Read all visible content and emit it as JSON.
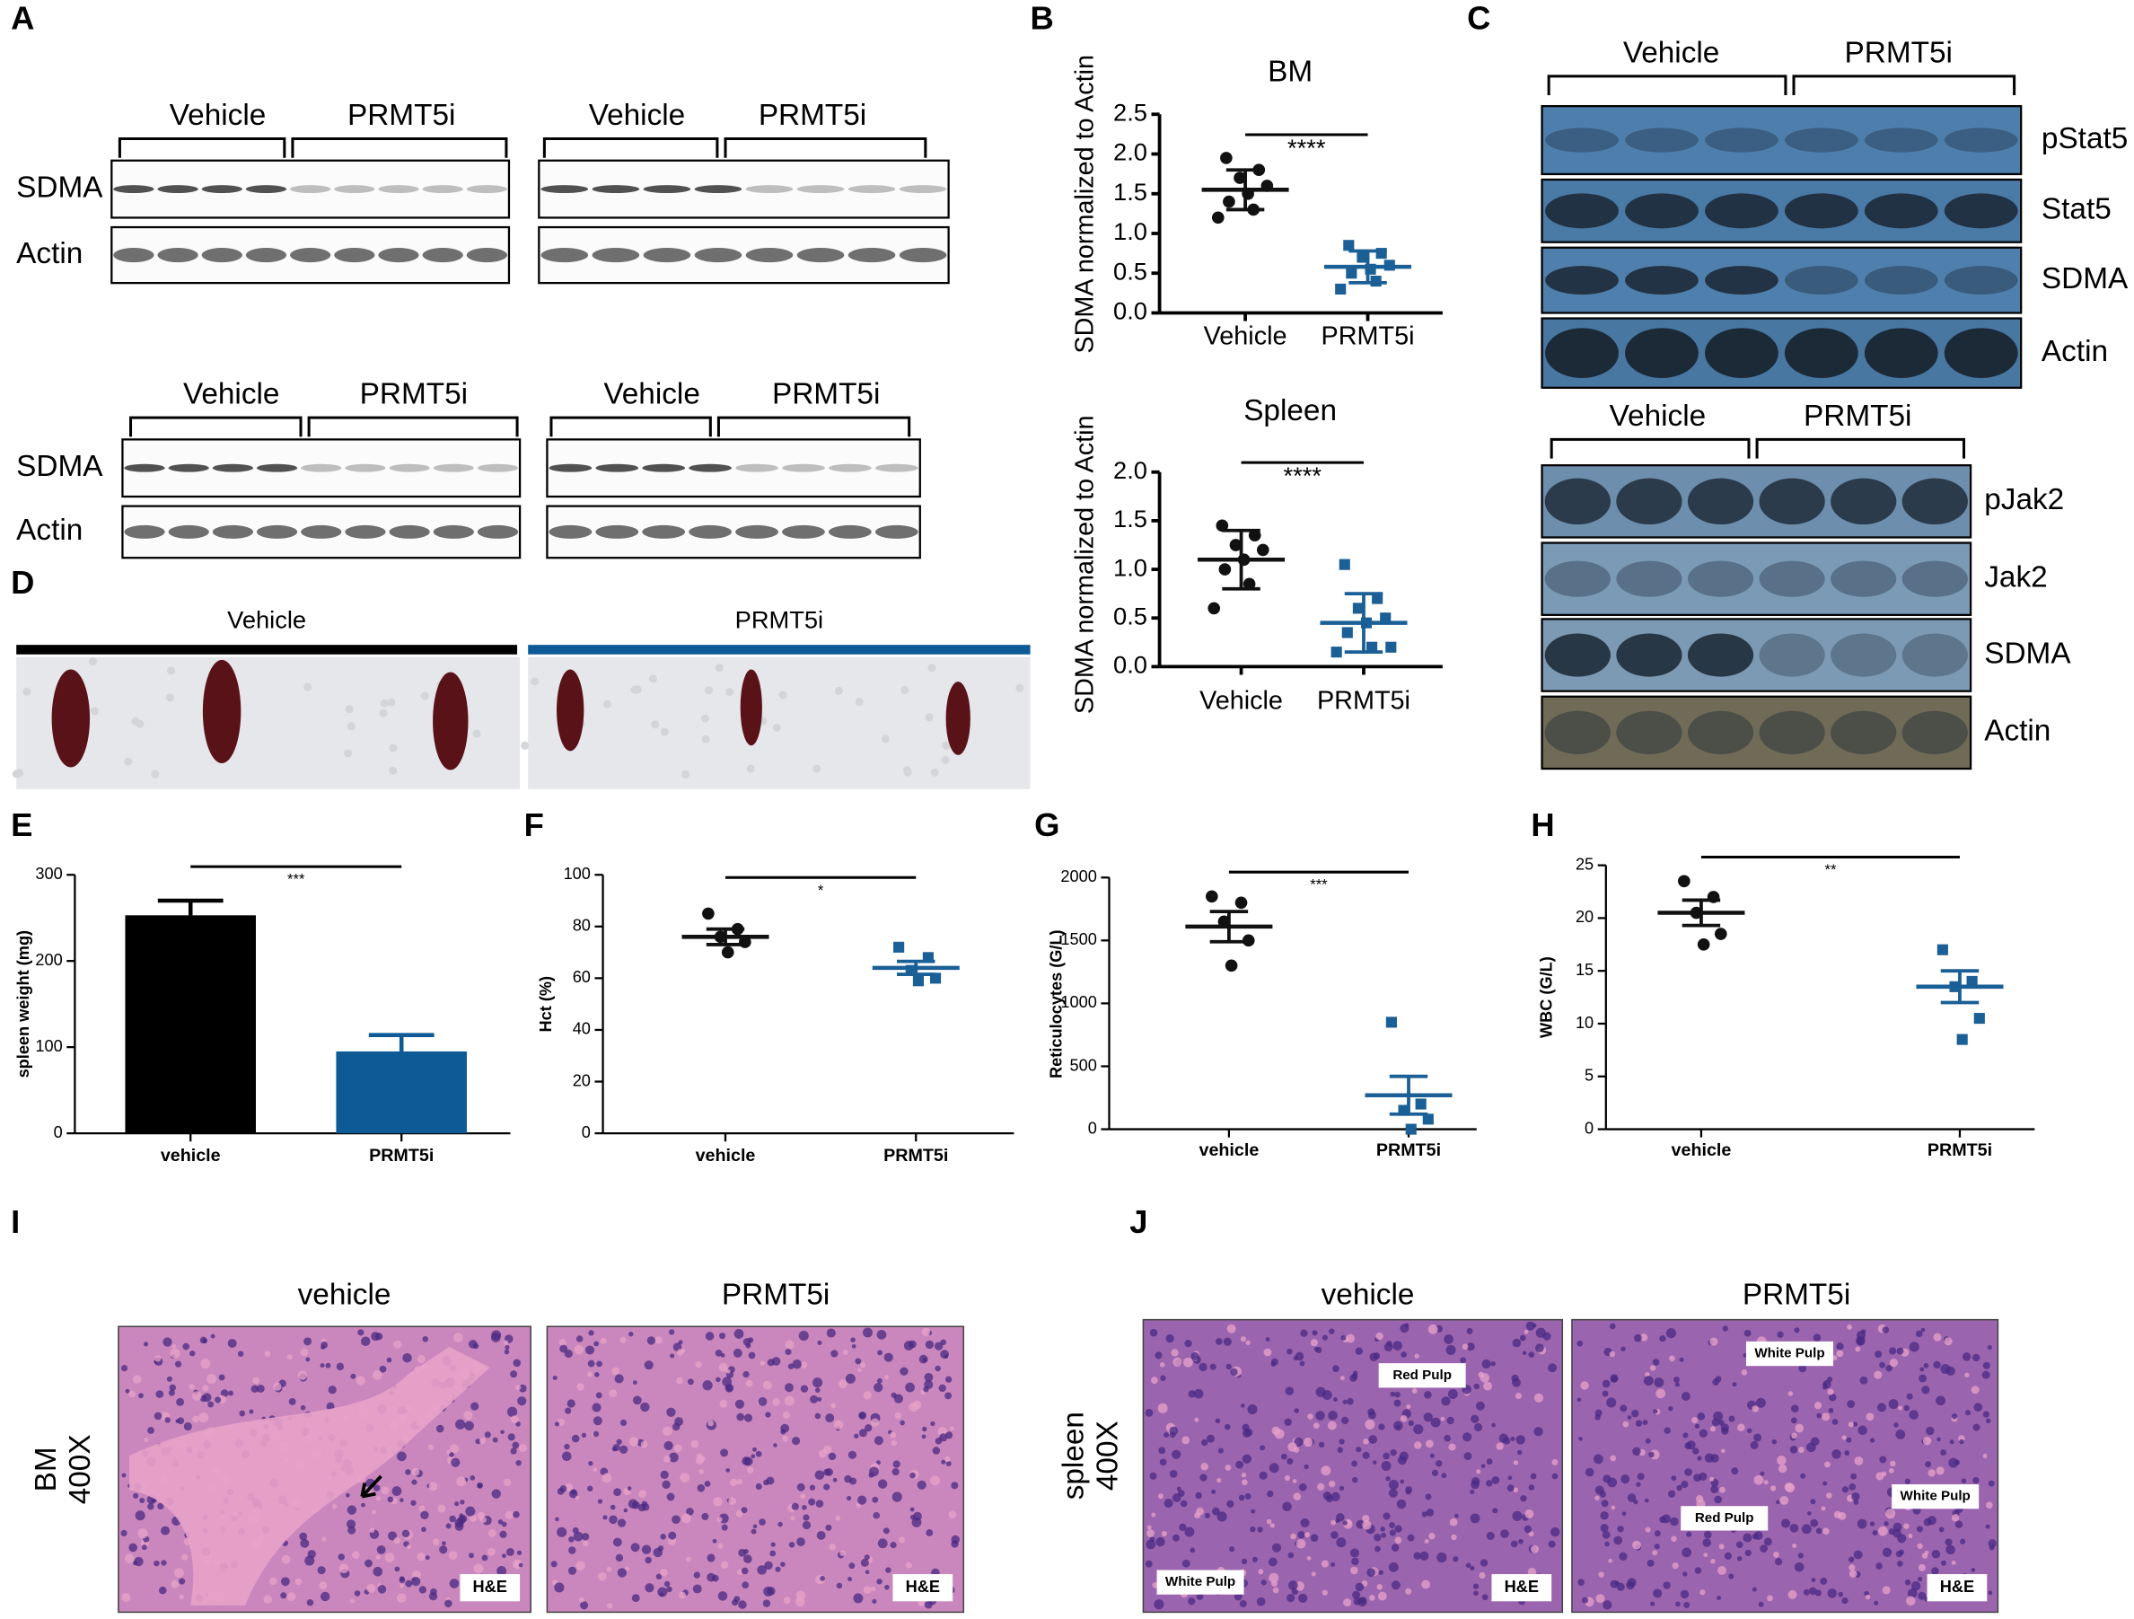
{
  "panel_letters": [
    "A",
    "B",
    "C",
    "D",
    "E",
    "F",
    "G",
    "H",
    "I",
    "J"
  ],
  "panel_a": {
    "blots": [
      {
        "groups": [
          "Vehicle",
          "PRMT5i"
        ],
        "rows": [
          "SDMA",
          "Actin"
        ]
      },
      {
        "groups": [
          "Vehicle",
          "PRMT5i"
        ]
      },
      {
        "groups": [
          "Vehicle",
          "PRMT5i"
        ],
        "rows": [
          "SDMA",
          "Actin"
        ]
      },
      {
        "groups": [
          "Vehicle",
          "PRMT5i"
        ]
      }
    ]
  },
  "panel_c": {
    "blots": [
      {
        "groups": [
          "Vehicle",
          "PRMT5i"
        ],
        "rows": [
          "pStat5",
          "Stat5",
          "SDMA",
          "Actin"
        ]
      },
      {
        "groups": [
          "Vehicle",
          "PRMT5i"
        ],
        "rows": [
          "pJak2",
          "Jak2",
          "SDMA",
          "Actin"
        ]
      }
    ]
  },
  "panel_d": {
    "labels": [
      "Vehicle",
      "PRMT5i"
    ]
  },
  "panel_i": {
    "titles": [
      "vehicle",
      "PRMT5i"
    ],
    "row_label": [
      "BM",
      "400X"
    ],
    "stain": [
      "H&E",
      "H&E"
    ]
  },
  "panel_j": {
    "titles": [
      "vehicle",
      "PRMT5i"
    ],
    "row_label": [
      "spleen",
      "400X"
    ],
    "stain": [
      "H&E",
      "H&E"
    ],
    "annotations": [
      [
        "Red Pulp",
        "White Pulp"
      ],
      [
        "White Pulp",
        "Red Pulp",
        "White Pulp"
      ]
    ]
  },
  "chart_data": [
    {
      "type": "dot-plot",
      "title": "BM",
      "y_label": "SDMA normalized to Actin",
      "categories": [
        "Vehicle",
        "PRMT5i"
      ],
      "groups": [
        {
          "color": "#111111",
          "marker": "circle",
          "values": [
            1.95,
            1.8,
            1.7,
            1.6,
            1.5,
            1.4,
            1.3,
            1.2
          ],
          "mean": 1.55,
          "error": 0.25
        },
        {
          "color": "#1a5f96",
          "marker": "square",
          "values": [
            0.85,
            0.75,
            0.7,
            0.6,
            0.55,
            0.5,
            0.4,
            0.3
          ],
          "mean": 0.58,
          "error": 0.2
        }
      ],
      "ylim": [
        0,
        2.5
      ],
      "yticks": [
        {
          "value": 0,
          "label": "0.0"
        },
        0.5,
        {
          "value": 1,
          "label": "1.0"
        },
        1.5,
        {
          "value": 2,
          "label": "2.0"
        },
        2.5
      ],
      "significance": "****"
    },
    {
      "type": "dot-plot",
      "title": "Spleen",
      "y_label": "SDMA normalized to Actin",
      "categories": [
        "Vehicle",
        "PRMT5i"
      ],
      "groups": [
        {
          "color": "#111111",
          "marker": "circle",
          "values": [
            1.45,
            1.35,
            1.25,
            1.2,
            1.1,
            1.0,
            0.85,
            0.6
          ],
          "mean": 1.1,
          "error": 0.3
        },
        {
          "color": "#1a5f96",
          "marker": "square",
          "values": [
            1.05,
            0.7,
            0.6,
            0.5,
            0.45,
            0.35,
            0.2,
            0.15,
            0.2
          ],
          "mean": 0.45,
          "error": 0.3
        }
      ],
      "ylim": [
        0,
        2
      ],
      "yticks": [
        {
          "value": 0,
          "label": "0.0"
        },
        0.5,
        {
          "value": 1,
          "label": "1.0"
        },
        1.5,
        {
          "value": 2,
          "label": "2.0"
        }
      ],
      "significance": "****"
    },
    {
      "type": "bar",
      "y_label": "spleen weight (mg)",
      "categories": [
        "vehicle",
        "PRMT5i"
      ],
      "values": [
        253,
        95
      ],
      "errors": [
        17,
        19
      ],
      "colors": [
        "#000000",
        "#0d5a96"
      ],
      "ylim": [
        0,
        300
      ],
      "yticks": [
        0,
        100,
        200,
        300
      ],
      "significance": "***"
    },
    {
      "type": "dot-plot",
      "y_label": "Hct (%)",
      "categories": [
        "vehicle",
        "PRMT5i"
      ],
      "groups": [
        {
          "color": "#111111",
          "marker": "circle",
          "values": [
            85,
            79,
            76,
            74,
            70
          ],
          "mean": 76,
          "error": 3
        },
        {
          "color": "#1a5f96",
          "marker": "square",
          "values": [
            72,
            68,
            63,
            60,
            59
          ],
          "mean": 64,
          "error": 2.5
        }
      ],
      "ylim": [
        0,
        100
      ],
      "yticks": [
        0,
        20,
        40,
        60,
        80,
        100
      ],
      "significance": "*"
    },
    {
      "type": "dot-plot",
      "y_label": "Reticulocytes (G/L)",
      "categories": [
        "vehicle",
        "PRMT5i"
      ],
      "groups": [
        {
          "color": "#111111",
          "marker": "circle",
          "values": [
            1850,
            1800,
            1650,
            1500,
            1300
          ],
          "mean": 1610,
          "error": 120
        },
        {
          "color": "#1a5f96",
          "marker": "square",
          "values": [
            850,
            200,
            150,
            80,
            0
          ],
          "mean": 270,
          "error": 150
        }
      ],
      "ylim": [
        0,
        2000
      ],
      "yticks": [
        0,
        500,
        1000,
        1500,
        2000
      ],
      "significance": "***"
    },
    {
      "type": "dot-plot",
      "y_label": "WBC (G/L)",
      "categories": [
        "vehicle",
        "PRMT5i"
      ],
      "groups": [
        {
          "color": "#111111",
          "marker": "circle",
          "values": [
            23.5,
            22,
            20.5,
            18.5,
            17.5
          ],
          "mean": 20.5,
          "error": 1.2
        },
        {
          "color": "#1a5f96",
          "marker": "square",
          "values": [
            17,
            14,
            13.5,
            10.5,
            8.5
          ],
          "mean": 13.5,
          "error": 1.5
        }
      ],
      "ylim": [
        0,
        25
      ],
      "yticks": [
        0,
        5,
        10,
        15,
        20,
        25
      ],
      "significance": "**"
    }
  ]
}
